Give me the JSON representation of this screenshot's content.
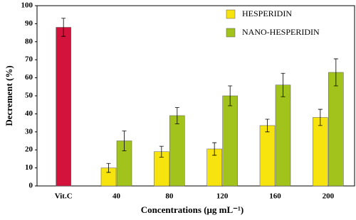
{
  "chart_data": {
    "type": "bar",
    "xlabel": "Concentrations (μg mL⁻¹)",
    "ylabel": "Decrement (%)",
    "categories": [
      "Vit.C",
      "40",
      "80",
      "120",
      "160",
      "200"
    ],
    "series": [
      {
        "color": "#d3133b",
        "values": [
          88,
          null,
          null,
          null,
          null,
          null
        ],
        "errors": [
          5,
          null,
          null,
          null,
          null,
          null
        ]
      },
      {
        "name": "HESPERIDIN",
        "color": "#f7e40f",
        "values": [
          null,
          10,
          19,
          20.5,
          33.5,
          38
        ],
        "errors": [
          null,
          2.5,
          3,
          3.5,
          3.5,
          4.5
        ]
      },
      {
        "name": "NANO-HESPERIDIN",
        "color": "#a2c21c",
        "values": [
          null,
          25,
          39,
          50,
          56,
          63
        ],
        "errors": [
          null,
          5.5,
          4.5,
          5.5,
          6.5,
          7.5
        ]
      }
    ],
    "ylim": [
      0,
      100
    ],
    "yticks": [
      0,
      10,
      20,
      30,
      40,
      50,
      60,
      70,
      80,
      90,
      100
    ],
    "legend": "top-right"
  }
}
